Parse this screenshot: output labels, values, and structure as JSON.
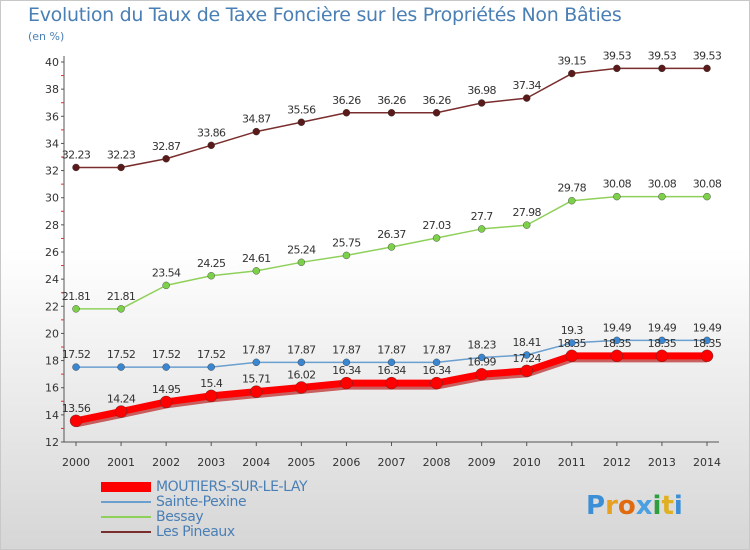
{
  "title": "Evolution du Taux de Taxe Foncière sur les Propriétés Non Bâties",
  "unit_label": "(en %)",
  "logo": {
    "letters": [
      "P",
      "r",
      "o",
      "x",
      "i",
      "t",
      "i"
    ],
    "colors": [
      "#3c8fd6",
      "#e8a020",
      "#e06a10",
      "#4aa0e0",
      "#2e9e3e",
      "#e0b020",
      "#3c8fd6"
    ]
  },
  "chart_data": {
    "type": "line",
    "x": [
      "2000",
      "2001",
      "2002",
      "2003",
      "2004",
      "2005",
      "2006",
      "2007",
      "2008",
      "2009",
      "2010",
      "2011",
      "2012",
      "2013",
      "2014"
    ],
    "ylim": [
      12,
      40
    ],
    "yticks": [
      "12",
      "14",
      "16",
      "18",
      "20",
      "22",
      "24",
      "26",
      "28",
      "30",
      "32",
      "34",
      "36",
      "38",
      "40"
    ],
    "grid": false,
    "series": [
      {
        "name": "MOUTIERS-SUR-LE-LAY",
        "color": "#ff0000",
        "marker": "#ff0000",
        "values": [
          13.56,
          14.24,
          14.95,
          15.4,
          15.71,
          16.02,
          16.34,
          16.34,
          16.34,
          16.99,
          17.24,
          18.35,
          18.35,
          18.35,
          18.35
        ],
        "labels": [
          "13.56",
          "14.24",
          "14.95",
          "15.4",
          "15.71",
          "16.02",
          "16.34",
          "16.34",
          "16.34",
          "16.99",
          "17.24",
          "18.35",
          "18.35",
          "18.35",
          "18.35"
        ]
      },
      {
        "name": "Sainte-Pexine",
        "color": "#6a9fcf",
        "marker": "#3a86d0",
        "values": [
          17.52,
          17.52,
          17.52,
          17.52,
          17.87,
          17.87,
          17.87,
          17.87,
          17.87,
          18.23,
          18.41,
          19.3,
          19.49,
          19.49,
          19.49
        ],
        "labels": [
          "17.52",
          "17.52",
          "17.52",
          "17.52",
          "17.87",
          "17.87",
          "17.87",
          "17.87",
          "17.87",
          "18.23",
          "18.41",
          "19.3",
          "19.49",
          "19.49",
          "19.49"
        ]
      },
      {
        "name": "Bessay",
        "color": "#8fd05a",
        "marker": "#7cd04a",
        "values": [
          21.81,
          21.81,
          23.54,
          24.25,
          24.61,
          25.24,
          25.75,
          26.37,
          27.03,
          27.7,
          27.98,
          29.78,
          30.08,
          30.08,
          30.08
        ],
        "labels": [
          "21.81",
          "21.81",
          "23.54",
          "24.25",
          "24.61",
          "25.24",
          "25.75",
          "26.37",
          "27.03",
          "27.7",
          "27.98",
          "29.78",
          "30.08",
          "30.08",
          "30.08"
        ]
      },
      {
        "name": "Les Pineaux",
        "color": "#7a2d2d",
        "marker": "#5a1a1a",
        "values": [
          32.23,
          32.23,
          32.87,
          33.86,
          34.87,
          35.56,
          36.26,
          36.26,
          36.26,
          36.98,
          37.34,
          39.15,
          39.53,
          39.53,
          39.53
        ],
        "labels": [
          "32.23",
          "32.23",
          "32.87",
          "33.86",
          "34.87",
          "35.56",
          "36.26",
          "36.26",
          "36.26",
          "36.98",
          "37.34",
          "39.15",
          "39.53",
          "39.53",
          "39.53"
        ]
      }
    ]
  }
}
